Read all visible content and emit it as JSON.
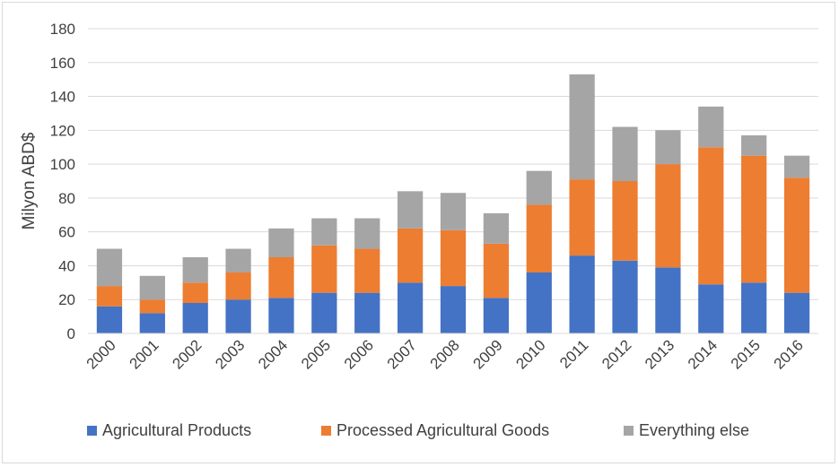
{
  "chart_data": {
    "type": "bar",
    "stacked": true,
    "categories": [
      "2000",
      "2001",
      "2002",
      "2003",
      "2004",
      "2005",
      "2006",
      "2007",
      "2008",
      "2009",
      "2010",
      "2011",
      "2012",
      "2013",
      "2014",
      "2015",
      "2016"
    ],
    "series": [
      {
        "name": "Agricultural Products",
        "color": "#4472c4",
        "values": [
          16,
          12,
          18,
          20,
          21,
          24,
          24,
          30,
          28,
          21,
          36,
          46,
          43,
          39,
          29,
          30,
          24
        ]
      },
      {
        "name": "Processed Agricultural Goods",
        "color": "#ed7d31",
        "values": [
          12,
          8,
          12,
          16,
          24,
          28,
          26,
          32,
          33,
          32,
          40,
          45,
          47,
          61,
          81,
          75,
          68
        ]
      },
      {
        "name": "Everything else",
        "color": "#a5a5a5",
        "values": [
          22,
          14,
          15,
          14,
          17,
          16,
          18,
          22,
          22,
          18,
          20,
          62,
          32,
          20,
          24,
          12,
          13
        ]
      }
    ],
    "ylabel": "Milyon ABD$",
    "xlabel": "",
    "ylim": [
      0,
      180
    ],
    "yticks": [
      0,
      20,
      40,
      60,
      80,
      100,
      120,
      140,
      160,
      180
    ],
    "grid": true,
    "legend_position": "bottom"
  }
}
